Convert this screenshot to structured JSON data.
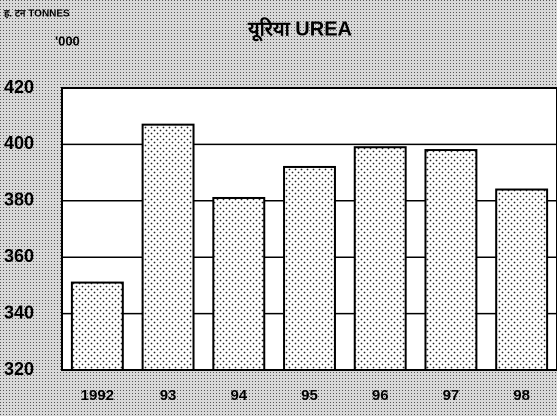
{
  "chart_data": {
    "type": "bar",
    "title": "यूरिया UREA",
    "unit_label": "ह. टन TONNES",
    "unit_sublabel": "'000",
    "categories": [
      "1992",
      "93",
      "94",
      "95",
      "96",
      "97",
      "98"
    ],
    "values": [
      351,
      407,
      381,
      392,
      399,
      398,
      384
    ],
    "color": "#000000",
    "ylim": [
      320,
      420
    ],
    "yticks": [
      320,
      340,
      360,
      380,
      400,
      420
    ],
    "grid": true
  }
}
